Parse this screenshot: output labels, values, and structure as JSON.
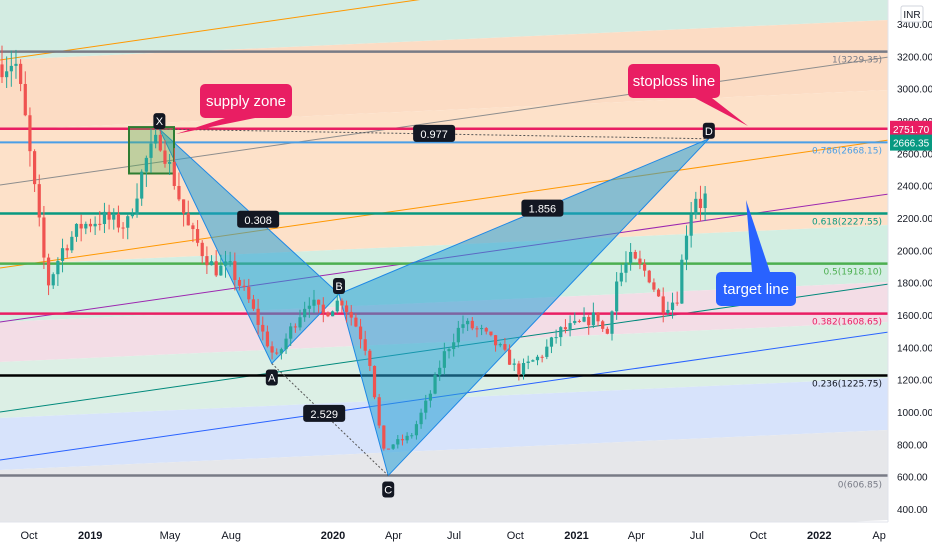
{
  "chart_data": {
    "type": "line",
    "currency": "INR",
    "ylim": [
      400,
      3400
    ],
    "y_ticks": [
      400,
      600,
      800,
      1000,
      1200,
      1400,
      1600,
      1800,
      2000,
      2200,
      2400,
      2600,
      2800,
      3000,
      3200,
      3400
    ],
    "y_tick_labels": [
      "400.00",
      "600.00",
      "800.00",
      "1000.00",
      "1200.00",
      "1400.00",
      "1600.00",
      "1800.00",
      "2000.00",
      "2200.00",
      "2400.00",
      "2600.00",
      "2800.00",
      "3000.00",
      "3200.00",
      "3400.00"
    ],
    "x_tick_labels": [
      {
        "label": "Oct",
        "bold": false
      },
      {
        "label": "2019",
        "bold": true
      },
      {
        "label": "May",
        "bold": false
      },
      {
        "label": "Aug",
        "bold": false
      },
      {
        "label": "2020",
        "bold": true
      },
      {
        "label": "Apr",
        "bold": false
      },
      {
        "label": "Jul",
        "bold": false
      },
      {
        "label": "Oct",
        "bold": false
      },
      {
        "label": "2021",
        "bold": true
      },
      {
        "label": "Apr",
        "bold": false
      },
      {
        "label": "Jul",
        "bold": false
      },
      {
        "label": "Oct",
        "bold": false
      },
      {
        "label": "2022",
        "bold": true
      },
      {
        "label": "Ap",
        "bold": false
      }
    ],
    "fib_levels": [
      {
        "ratio": "1",
        "value": 3229.35,
        "label": "1(3229.35)",
        "color": "#787b86"
      },
      {
        "ratio": "0.786",
        "value": 2668.15,
        "label": "0.786(2668.15)",
        "color": "#4a9ee6"
      },
      {
        "ratio": "0.618",
        "value": 2227.55,
        "label": "0.618(2227.55)",
        "color": "#089981"
      },
      {
        "ratio": "0.5",
        "value": 1918.1,
        "label": "0.5(1918.10)",
        "color": "#4caf50"
      },
      {
        "ratio": "0.382",
        "value": 1608.65,
        "label": "0.382(1608.65)",
        "color": "#e91e63"
      },
      {
        "ratio": "0.236",
        "value": 1225.75,
        "label": "0.236(1225.75)",
        "color": "#000000"
      },
      {
        "ratio": "0",
        "value": 606.85,
        "label": "0(606.85)",
        "color": "#787b86"
      }
    ],
    "price_labels": [
      {
        "text": "2751.70",
        "value": 2751.7,
        "bg": "#e91e63"
      },
      {
        "text": "2666.35",
        "value": 2666.35,
        "bg": "#089981"
      }
    ],
    "harmonic_points": [
      {
        "label": "X",
        "date": "2019-04-15",
        "value": 2750
      },
      {
        "label": "A",
        "date": "2019-10-01",
        "value": 1300
      },
      {
        "label": "B",
        "date": "2020-01-10",
        "value": 1730
      },
      {
        "label": "C",
        "date": "2020-03-24",
        "value": 606.85
      },
      {
        "label": "D",
        "date": "2021-07-19",
        "value": 2690
      }
    ],
    "ratios": [
      {
        "text": "0.308"
      },
      {
        "text": "2.529"
      },
      {
        "text": "1.856"
      },
      {
        "text": "0.977"
      }
    ],
    "annotations": [
      {
        "text": "supply zone"
      },
      {
        "text": "stoploss line"
      },
      {
        "text": "target line"
      }
    ]
  }
}
